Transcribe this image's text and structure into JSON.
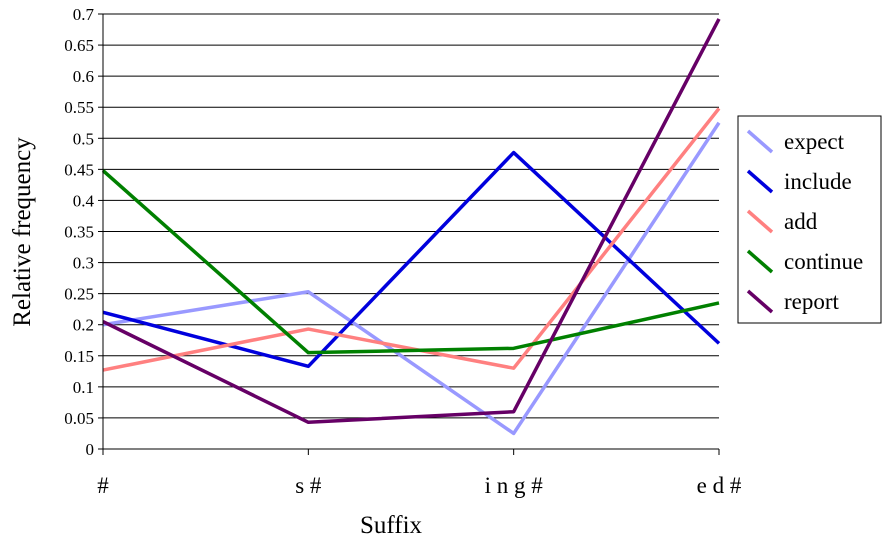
{
  "chart_data": {
    "type": "line",
    "title": "",
    "xlabel": "Suffix",
    "ylabel": "Relative frequency",
    "categories": [
      "#",
      "s #",
      "i n g #",
      "e d #"
    ],
    "ylim": [
      0,
      0.7
    ],
    "yticks": [
      "0",
      "0.05",
      "0.1",
      "0.15",
      "0.2",
      "0.25",
      "0.3",
      "0.35",
      "0.4",
      "0.45",
      "0.5",
      "0.55",
      "0.6",
      "0.65",
      "0.7"
    ],
    "grid": true,
    "legend_position": "right",
    "series": [
      {
        "name": "expect",
        "color": "#9999ff",
        "values": [
          0.2,
          0.253,
          0.025,
          0.525
        ]
      },
      {
        "name": "include",
        "color": "#0000dd",
        "values": [
          0.22,
          0.133,
          0.477,
          0.17
        ]
      },
      {
        "name": "add",
        "color": "#ff8080",
        "values": [
          0.127,
          0.193,
          0.13,
          0.548
        ]
      },
      {
        "name": "continue",
        "color": "#008000",
        "values": [
          0.448,
          0.155,
          0.162,
          0.235
        ]
      },
      {
        "name": "report",
        "color": "#660066",
        "values": [
          0.205,
          0.043,
          0.06,
          0.692
        ]
      }
    ]
  }
}
